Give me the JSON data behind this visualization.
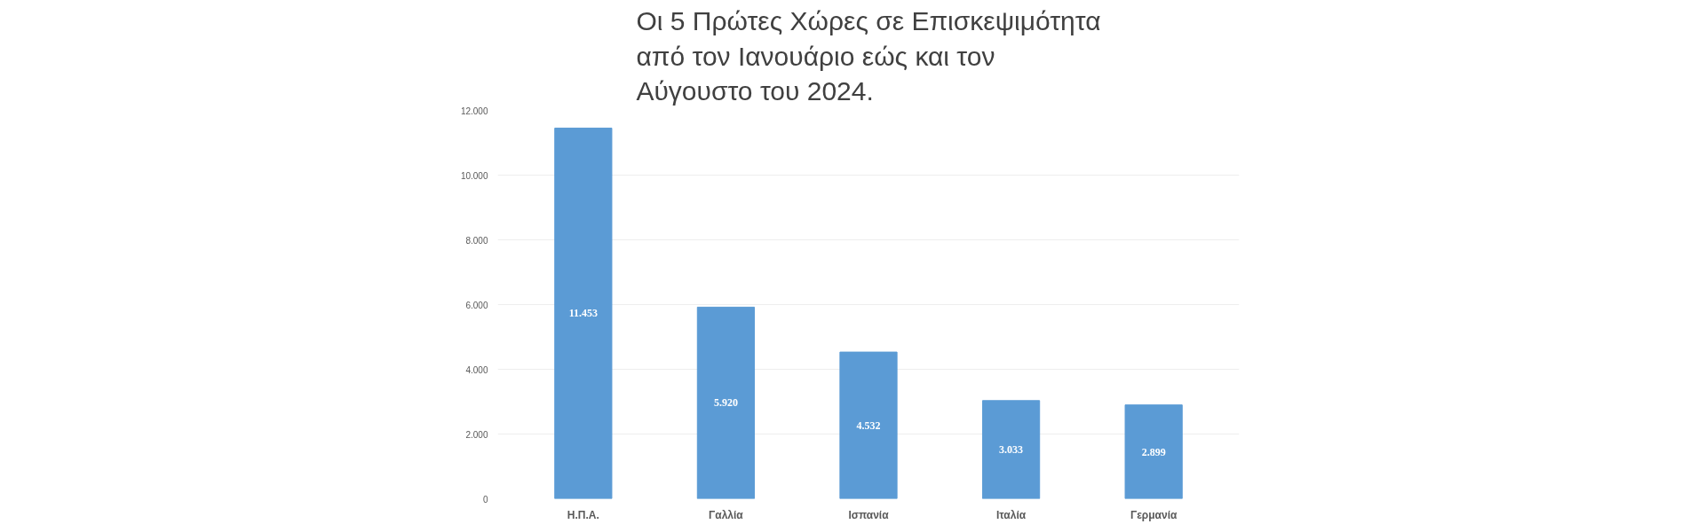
{
  "chart_data": {
    "type": "bar",
    "title": "Οι 5 Πρώτες Χώρες σε Επισκεψιμότητα\nαπό τον Ιανουάριο εώς και τον\nΑύγουστο του 2024.",
    "categories": [
      "Η.Π.Α.",
      "Γαλλία",
      "Ισπανία",
      "Ιταλία",
      "Γερμανία"
    ],
    "values": [
      11453,
      5920,
      4532,
      3033,
      2899
    ],
    "value_labels": [
      "11.453",
      "5.920",
      "4.532",
      "3.033",
      "2.899"
    ],
    "color": "#5b9bd5",
    "ylim": [
      0,
      12000
    ],
    "yticks": [
      0,
      {
        "value": 2000,
        "label": "2.000"
      },
      {
        "value": 4000,
        "label": "4.000"
      },
      {
        "value": 6000,
        "label": "6.000"
      },
      {
        "value": 8000,
        "label": "8.000"
      },
      {
        "value": 10000,
        "label": "10.000"
      },
      {
        "value": 12000,
        "label": "12.000"
      }
    ],
    "grid": "y"
  }
}
